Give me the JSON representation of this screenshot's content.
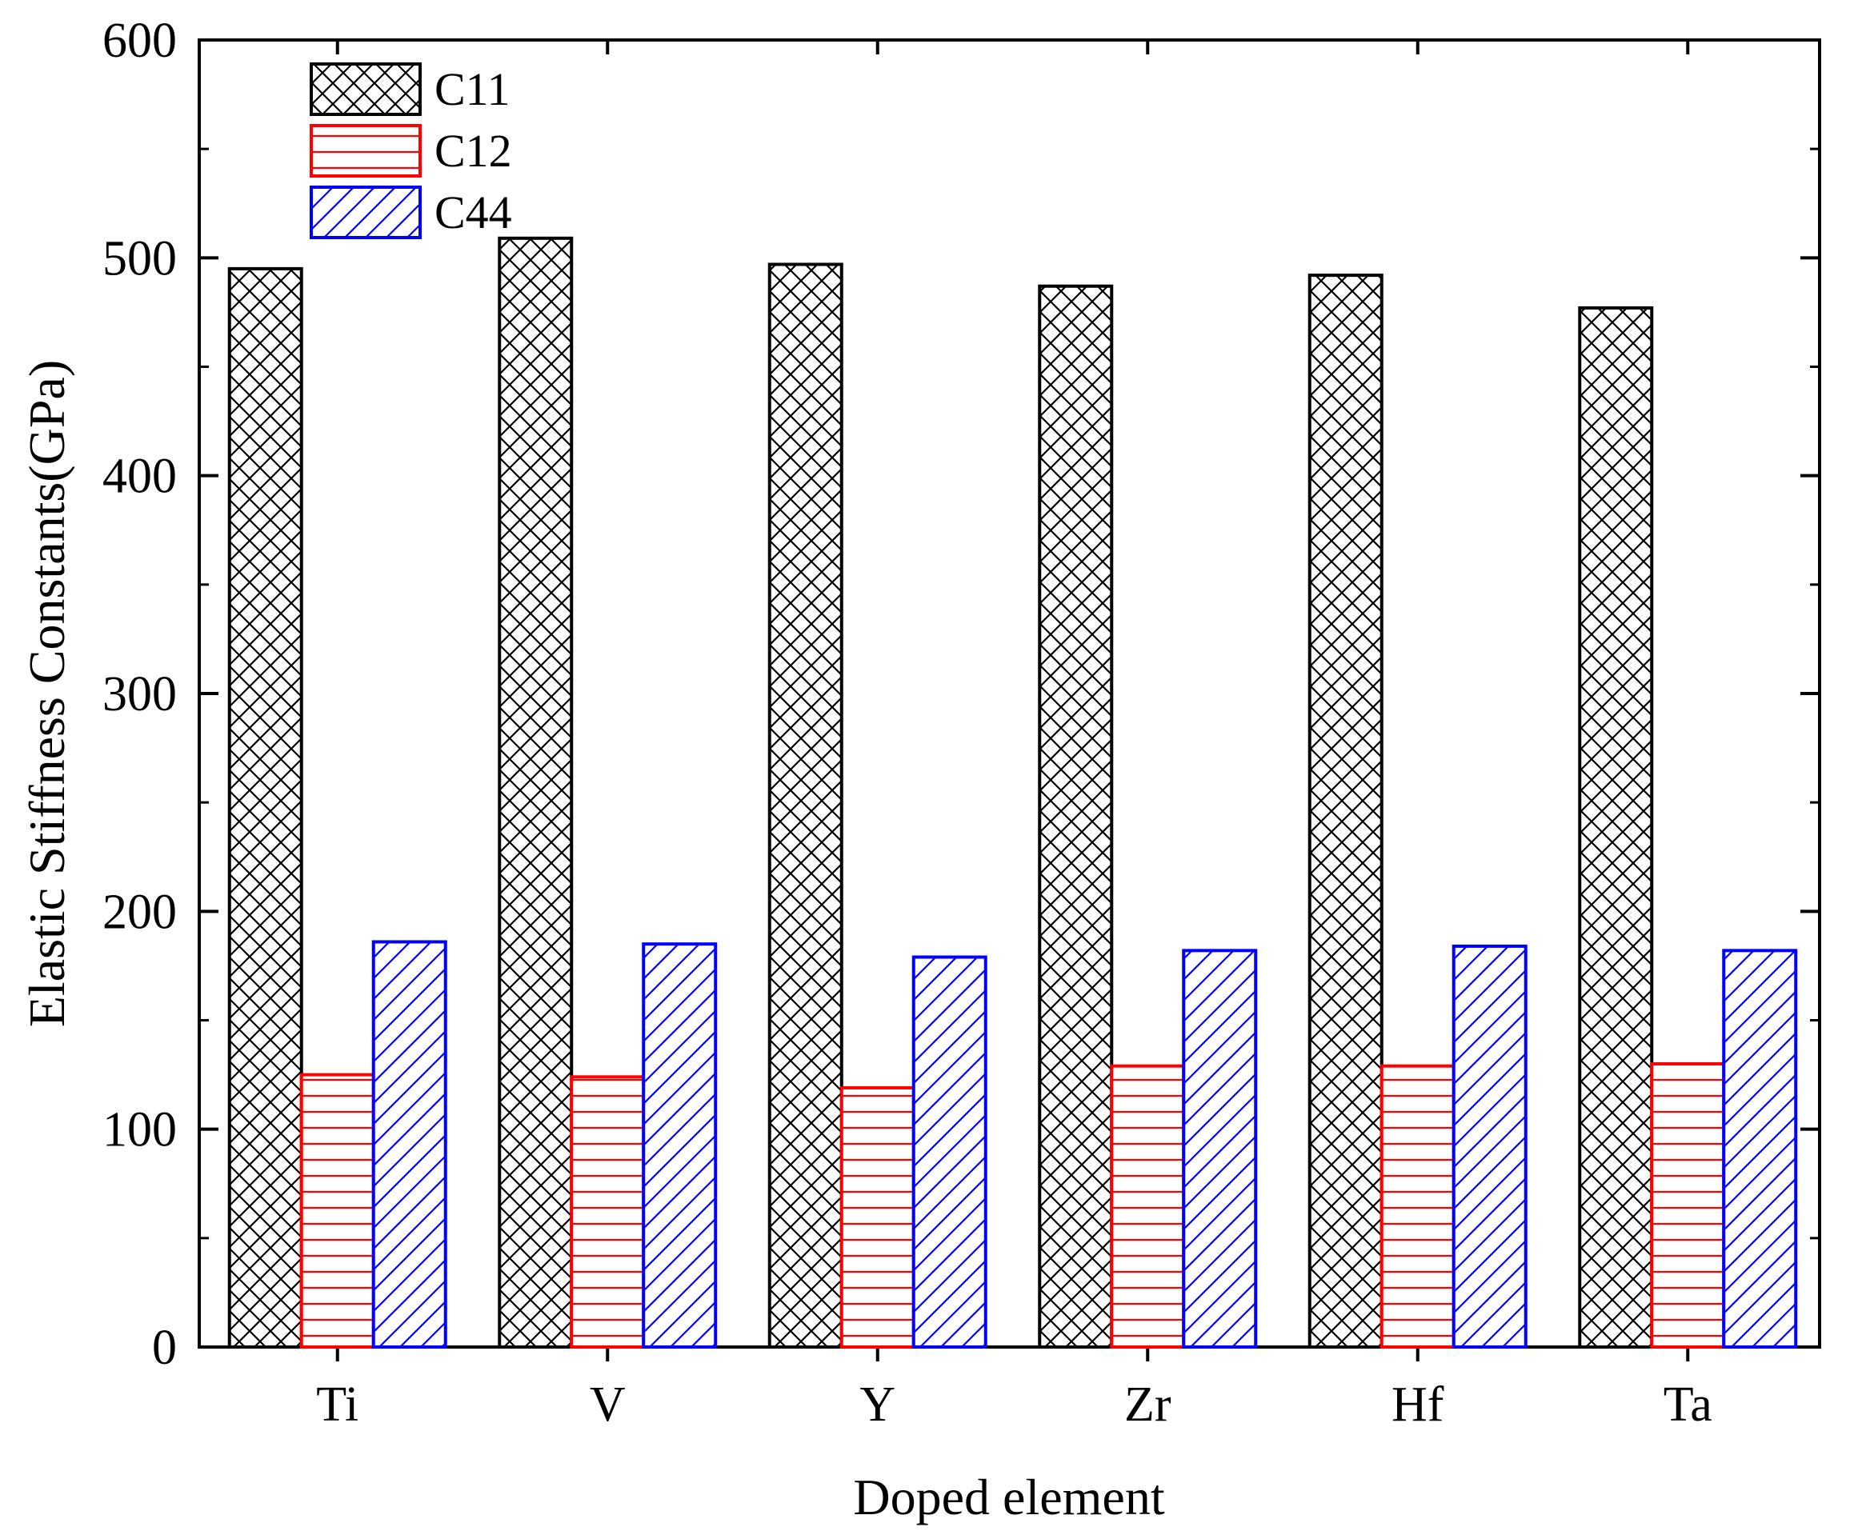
{
  "chart_data": {
    "type": "bar",
    "title": "",
    "xlabel": "Doped element",
    "ylabel": "Elastic Stiffness Constants(GPa)",
    "ylim": [
      0,
      600
    ],
    "yticks": [
      "0",
      "100",
      "200",
      "300",
      "400",
      "500",
      "600"
    ],
    "categories": [
      "Ti",
      "V",
      "Y",
      "Zr",
      "Hf",
      "Ta"
    ],
    "series": [
      {
        "name": "C11",
        "color": "#000000",
        "pattern": "crosshatch",
        "values": [
          495,
          509,
          497,
          487,
          492,
          477
        ]
      },
      {
        "name": "C12",
        "color": "#ff0000",
        "pattern": "horizontal",
        "values": [
          125,
          124,
          119,
          129,
          129,
          130
        ]
      },
      {
        "name": "C44",
        "color": "#0000ff",
        "pattern": "diagonal",
        "values": [
          186,
          185,
          179,
          182,
          184,
          182
        ]
      }
    ],
    "legend_position": "top-left",
    "grid": false
  }
}
